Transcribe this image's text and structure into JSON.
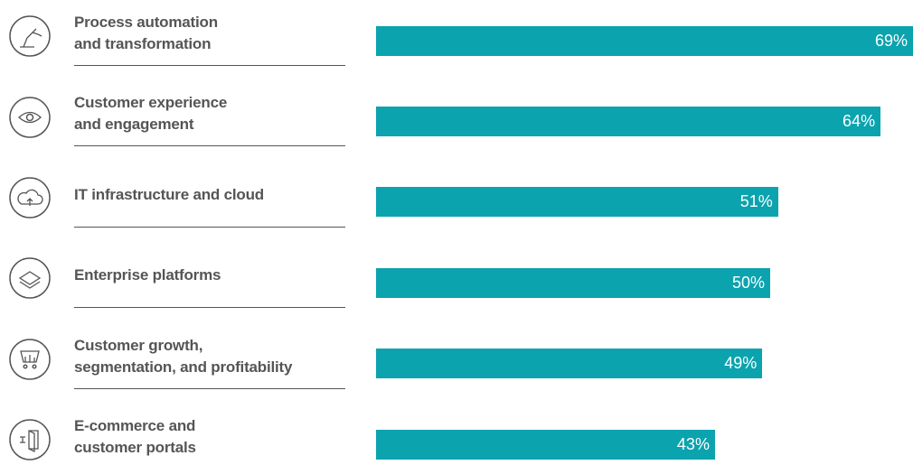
{
  "chart_data": {
    "type": "bar",
    "orientation": "horizontal",
    "categories": [
      "Process automation\nand transformation",
      "Customer experience\nand engagement",
      "IT infrastructure and cloud",
      "Enterprise platforms",
      "Customer growth,\nsegmentation, and profitability",
      "E-commerce and\ncustomer portals"
    ],
    "values": [
      69,
      64,
      51,
      50,
      49,
      43
    ],
    "value_labels": [
      "69%",
      "64%",
      "51%",
      "50%",
      "49%",
      "43%"
    ],
    "color": "#0ba3ae"
  }
}
